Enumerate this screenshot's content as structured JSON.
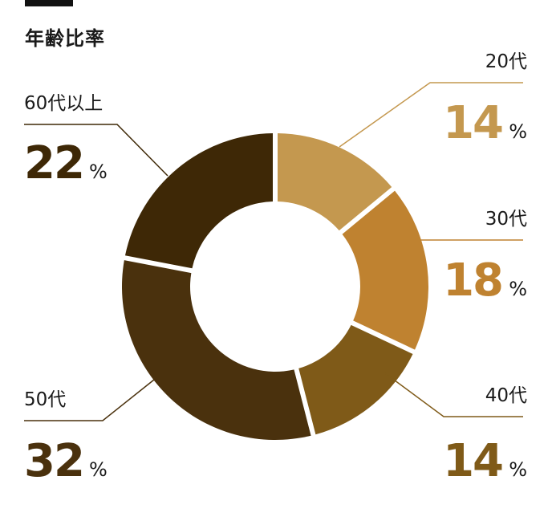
{
  "chart_data": {
    "type": "pie",
    "title": "年齢比率",
    "unit": "%",
    "categories": [
      "20代",
      "30代",
      "40代",
      "50代",
      "60代以上"
    ],
    "values": [
      14,
      18,
      14,
      32,
      22
    ],
    "colors": [
      "#c4984f",
      "#bf8230",
      "#7f5a18",
      "#4a310d",
      "#3e2806"
    ]
  }
}
